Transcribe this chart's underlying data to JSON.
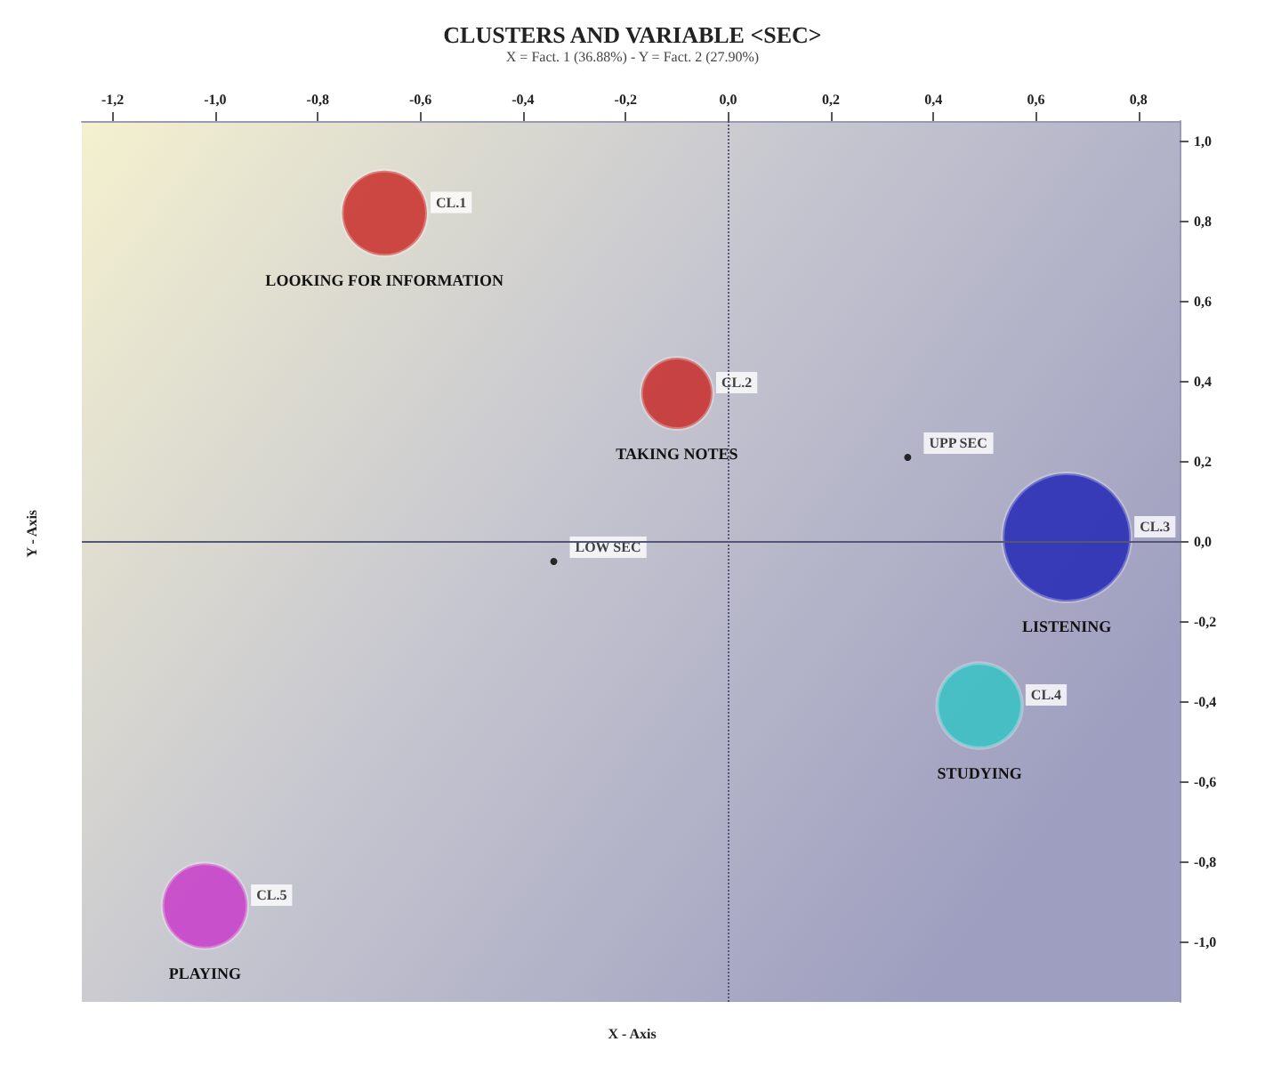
{
  "chart_data": {
    "type": "bubble",
    "title": "CLUSTERS AND VARIABLE <SEC>",
    "subtitle": "X = Fact. 1 (36.88%) - Y = Fact. 2 (27.90%)",
    "xlabel": "X - Axis",
    "ylabel": "Y - Axis",
    "series": [
      {
        "name": "LOOKING FOR INFORMATION",
        "color": "#c8221e",
        "x": [
          -0.67
        ],
        "values": [
          0.82
        ],
        "sizes": [
          0.44
        ],
        "value_labels": [
          "CL.1"
        ]
      },
      {
        "name": "TAKING NOTES",
        "color": "#c8221e",
        "x": [
          -0.1
        ],
        "values": [
          0.37
        ],
        "sizes": [
          0.31
        ],
        "value_labels": [
          "CL.2"
        ]
      },
      {
        "name": "LISTENING",
        "color": "#1a1fb4",
        "x": [
          0.66
        ],
        "values": [
          0.01
        ],
        "sizes": [
          1
        ],
        "value_labels": [
          "CL.3"
        ]
      },
      {
        "name": "STUDYING",
        "color": "#2ec4c4",
        "x": [
          0.49
        ],
        "values": [
          -0.41
        ],
        "sizes": [
          0.44
        ],
        "value_labels": [
          "CL.4"
        ]
      },
      {
        "name": "PLAYING",
        "color": "#c832c8",
        "x": [
          -1.02
        ],
        "values": [
          -0.91
        ],
        "sizes": [
          0.44
        ],
        "value_labels": [
          "CL.5"
        ]
      },
      {
        "type": "scatter",
        "color": "#000000",
        "x": [
          0.35,
          -0.34
        ],
        "values": [
          0.21,
          -0.05
        ],
        "value_labels": [
          "UPP SEC",
          "LOW SEC"
        ]
      }
    ],
    "xlim": [
      -1.26,
      0.88
    ],
    "xticks": [
      {
        "value": -1.2,
        "label": "-1,2"
      },
      {
        "value": -1.0,
        "label": "-1,0"
      },
      {
        "value": -0.8,
        "label": "-0,8"
      },
      {
        "value": -0.6,
        "label": "-0,6"
      },
      {
        "value": -0.4,
        "label": "-0,4"
      },
      {
        "value": -0.2,
        "label": "-0,2"
      },
      {
        "value": 0,
        "label": "0,0"
      },
      {
        "value": 0.2,
        "label": "0,2"
      },
      {
        "value": 0.4,
        "label": "0,4"
      },
      {
        "value": 0.6,
        "label": "0,6"
      },
      {
        "value": 0.8,
        "label": "0,8"
      }
    ],
    "ylim": [
      -1.15,
      1.05
    ],
    "yticks": [
      {
        "value": -1.0,
        "label": "-1,0"
      },
      {
        "value": -0.8,
        "label": "-0,8"
      },
      {
        "value": -0.6,
        "label": "-0,6"
      },
      {
        "value": -0.4,
        "label": "-0,4"
      },
      {
        "value": -0.2,
        "label": "-0,2"
      },
      {
        "value": 0,
        "label": "0,0"
      },
      {
        "value": 0.2,
        "label": "0,2"
      },
      {
        "value": 0.4,
        "label": "0,4"
      },
      {
        "value": 0.6,
        "label": "0,6"
      },
      {
        "value": 0.8,
        "label": "0,8"
      },
      {
        "value": 1.0,
        "label": "1,0"
      }
    ],
    "ref_lines": [
      {
        "axis": "x",
        "value": 0,
        "line_style": "dotted",
        "color": "#555577"
      },
      {
        "axis": "y",
        "value": 0,
        "line_style": "solid",
        "color": "#555577"
      }
    ],
    "marker": "circle",
    "legend": false,
    "grid": false
  }
}
